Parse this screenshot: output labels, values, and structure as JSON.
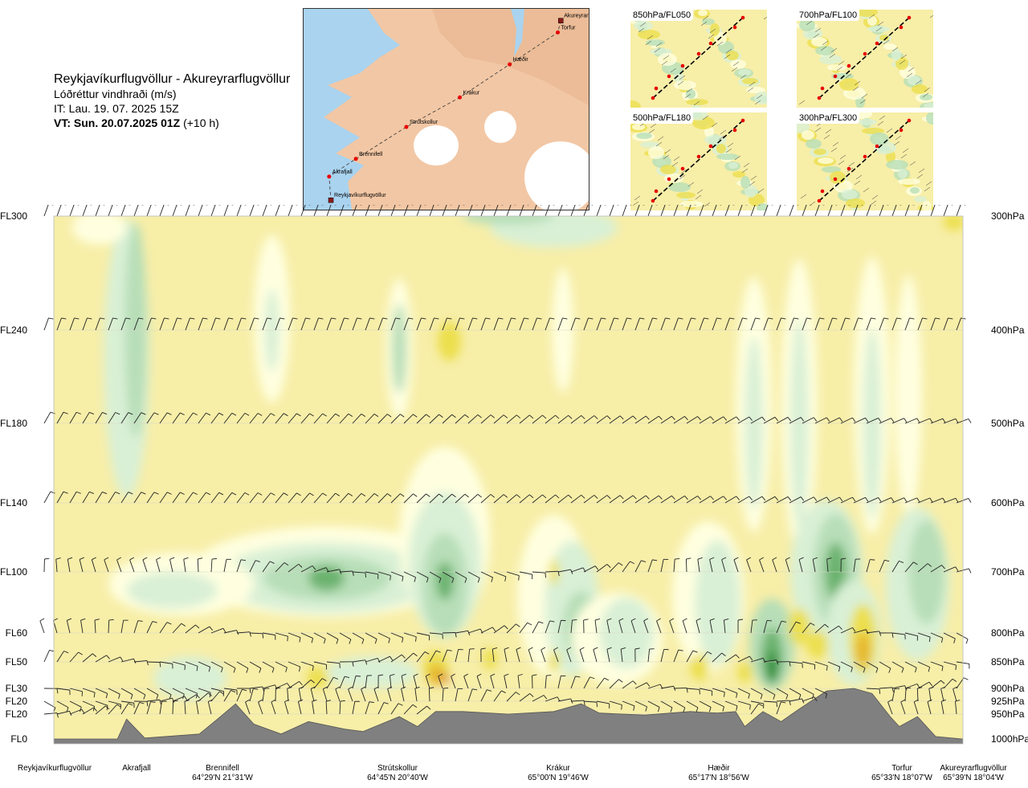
{
  "header": {
    "route_title": "Reykjavíkurflugvöllur - Akureyrarflugvöllur",
    "variable": "Lóðréttur vindhraði (m/s)",
    "issue_time": "IT: Lau. 19. 07. 2025 15Z",
    "valid_time_label": "VT: Sun. 20.07.2025 01Z",
    "valid_time_offset": "(+10 h)"
  },
  "route_map": {
    "waypoints": [
      {
        "name": "Akureyrarflugvöllur",
        "kind": "airport",
        "lon": -18.07,
        "lat": 65.65
      },
      {
        "name": "Torfur",
        "kind": "point",
        "lon": -18.12,
        "lat": 65.55
      },
      {
        "name": "Hæðir",
        "kind": "point",
        "lon": -18.93,
        "lat": 65.28
      },
      {
        "name": "Krákur",
        "kind": "point",
        "lon": -19.77,
        "lat": 65.0
      },
      {
        "name": "Strútskollur",
        "kind": "point",
        "lon": -20.67,
        "lat": 64.75
      },
      {
        "name": "Brennifell",
        "kind": "point",
        "lon": -21.52,
        "lat": 64.48
      },
      {
        "name": "Akrafjall",
        "kind": "point",
        "lon": -21.97,
        "lat": 64.33
      },
      {
        "name": "Reykjavíkurflugvöllur",
        "kind": "airport",
        "lon": -21.94,
        "lat": 64.13
      }
    ],
    "colors": {
      "sea": "#a9d3ef",
      "land": "#f2c7a5",
      "glacier": "#ffffff",
      "route": "#333333",
      "point": "#e60000"
    }
  },
  "mini_maps": [
    {
      "label": "850hPa/FL050"
    },
    {
      "label": "700hPa/FL100"
    },
    {
      "label": "500hPa/FL180"
    },
    {
      "label": "300hPa/FL300"
    }
  ],
  "chart_data": {
    "type": "heatmap",
    "variable": "vertical wind speed (m/s)",
    "y_axis_left": [
      "FL300",
      "FL240",
      "FL180",
      "FL140",
      "FL100",
      "FL60",
      "FL50",
      "FL30",
      "FL20",
      "FL20",
      "FL0"
    ],
    "y_axis_right": [
      "300hPa",
      "400hPa",
      "500hPa",
      "600hPa",
      "700hPa",
      "800hPa",
      "850hPa",
      "900hPa",
      "925hPa",
      "950hPa",
      "1000hPa"
    ],
    "pressure_levels_hpa": [
      300,
      400,
      500,
      600,
      700,
      800,
      850,
      900,
      925,
      950,
      1000
    ],
    "x_labels": [
      {
        "name": "Reykjavíkurflugvöllur",
        "coord": ""
      },
      {
        "name": "Akrafjall",
        "coord": ""
      },
      {
        "name": "Brennifell",
        "coord": "64°29'N 21°31'W"
      },
      {
        "name": "Strútskollur",
        "coord": "64°45'N 20°40'W"
      },
      {
        "name": "Krákur",
        "coord": "65°00'N 19°46'W"
      },
      {
        "name": "Hæðir",
        "coord": "65°17'N 18°56'W"
      },
      {
        "name": "Torfur",
        "coord": "65°33'N 18°07'W"
      },
      {
        "name": "Akureyrarflugvöllur",
        "coord": "65°39'N 18°04'W"
      }
    ],
    "route_fraction": [
      0.0,
      0.08,
      0.19,
      0.38,
      0.55,
      0.73,
      0.95,
      1.0
    ],
    "terrain_top_hpa_profile": [
      [
        0.0,
        1000
      ],
      [
        0.07,
        1000
      ],
      [
        0.08,
        960
      ],
      [
        0.1,
        998
      ],
      [
        0.16,
        990
      ],
      [
        0.18,
        960
      ],
      [
        0.2,
        930
      ],
      [
        0.22,
        970
      ],
      [
        0.25,
        990
      ],
      [
        0.28,
        965
      ],
      [
        0.32,
        980
      ],
      [
        0.34,
        985
      ],
      [
        0.38,
        955
      ],
      [
        0.4,
        975
      ],
      [
        0.42,
        945
      ],
      [
        0.45,
        945
      ],
      [
        0.5,
        950
      ],
      [
        0.55,
        945
      ],
      [
        0.58,
        930
      ],
      [
        0.6,
        948
      ],
      [
        0.65,
        952
      ],
      [
        0.7,
        945
      ],
      [
        0.73,
        948
      ],
      [
        0.75,
        945
      ],
      [
        0.76,
        975
      ],
      [
        0.78,
        945
      ],
      [
        0.8,
        965
      ],
      [
        0.82,
        940
      ],
      [
        0.85,
        905
      ],
      [
        0.88,
        900
      ],
      [
        0.9,
        910
      ],
      [
        0.92,
        955
      ],
      [
        0.93,
        975
      ],
      [
        0.95,
        955
      ],
      [
        0.97,
        995
      ],
      [
        1.0,
        1000
      ]
    ],
    "colors": {
      "strong_down": "#2f8f3a",
      "moderate_down": "#6cb36f",
      "weak_down": "#b7deb8",
      "very_weak_down": "#d9f0d6",
      "near_zero": "#ffffe0",
      "neutral": "#f7eea8",
      "weak_up": "#ecdf4e",
      "moderate_up": "#e5b52d",
      "strong_up": "#d4793a",
      "terrain": "#808080"
    }
  }
}
